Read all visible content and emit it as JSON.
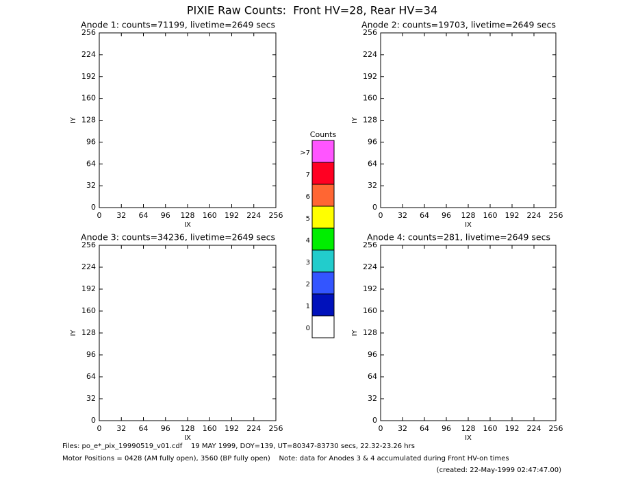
{
  "title": "PIXIE Raw Counts:  Front HV=28, Rear HV=34",
  "chart_data": [
    {
      "type": "heatmap",
      "title": "Anode 1: counts=71199, livetime=2649 secs",
      "x_label": "IX",
      "y_label": "IY",
      "xlim": [
        0,
        256
      ],
      "ylim": [
        0,
        256
      ],
      "xticks": [
        0,
        32,
        64,
        96,
        128,
        160,
        192,
        224,
        256
      ],
      "yticks": [
        0,
        32,
        64,
        96,
        128,
        160,
        192,
        224,
        256
      ]
    },
    {
      "type": "heatmap",
      "title": "Anode 2: counts=19703, livetime=2649 secs",
      "x_label": "IX",
      "y_label": "IY",
      "xlim": [
        0,
        256
      ],
      "ylim": [
        0,
        256
      ],
      "xticks": [
        0,
        32,
        64,
        96,
        128,
        160,
        192,
        224,
        256
      ],
      "yticks": [
        0,
        32,
        64,
        96,
        128,
        160,
        192,
        224,
        256
      ]
    },
    {
      "type": "heatmap",
      "title": "Anode 3: counts=34236, livetime=2649 secs",
      "x_label": "IX",
      "y_label": "IY",
      "xlim": [
        0,
        256
      ],
      "ylim": [
        0,
        256
      ],
      "xticks": [
        0,
        32,
        64,
        96,
        128,
        160,
        192,
        224,
        256
      ],
      "yticks": [
        0,
        32,
        64,
        96,
        128,
        160,
        192,
        224,
        256
      ]
    },
    {
      "type": "heatmap",
      "title": "Anode 4: counts=281, livetime=2649 secs",
      "x_label": "IX",
      "y_label": "IY",
      "xlim": [
        0,
        256
      ],
      "ylim": [
        0,
        256
      ],
      "xticks": [
        0,
        32,
        64,
        96,
        128,
        160,
        192,
        224,
        256
      ],
      "yticks": [
        0,
        32,
        64,
        96,
        128,
        160,
        192,
        224,
        256
      ]
    }
  ],
  "colorbar": {
    "title": "Counts",
    "levels": [
      0,
      1,
      2,
      3,
      4,
      5,
      6,
      7,
      ">7"
    ],
    "colors": [
      "#ffffff",
      "#0011bb",
      "#3355ff",
      "#22cccc",
      "#00ee00",
      "#ffff00",
      "#ff6633",
      "#ff0022",
      "#ff55ff"
    ]
  },
  "footer": [
    "Files: po_e*_pix_19990519_v01.cdf    19 MAY 1999, DOY=139, UT=80347-83730 secs, 22.32-23.26 hrs",
    "Motor Positions = 0428 (AM fully open), 3560 (BP fully open)    Note: data for Anodes 3 & 4 accumulated during Front HV-on times",
    "(created: 22-May-1999 02:47:47.00)"
  ]
}
